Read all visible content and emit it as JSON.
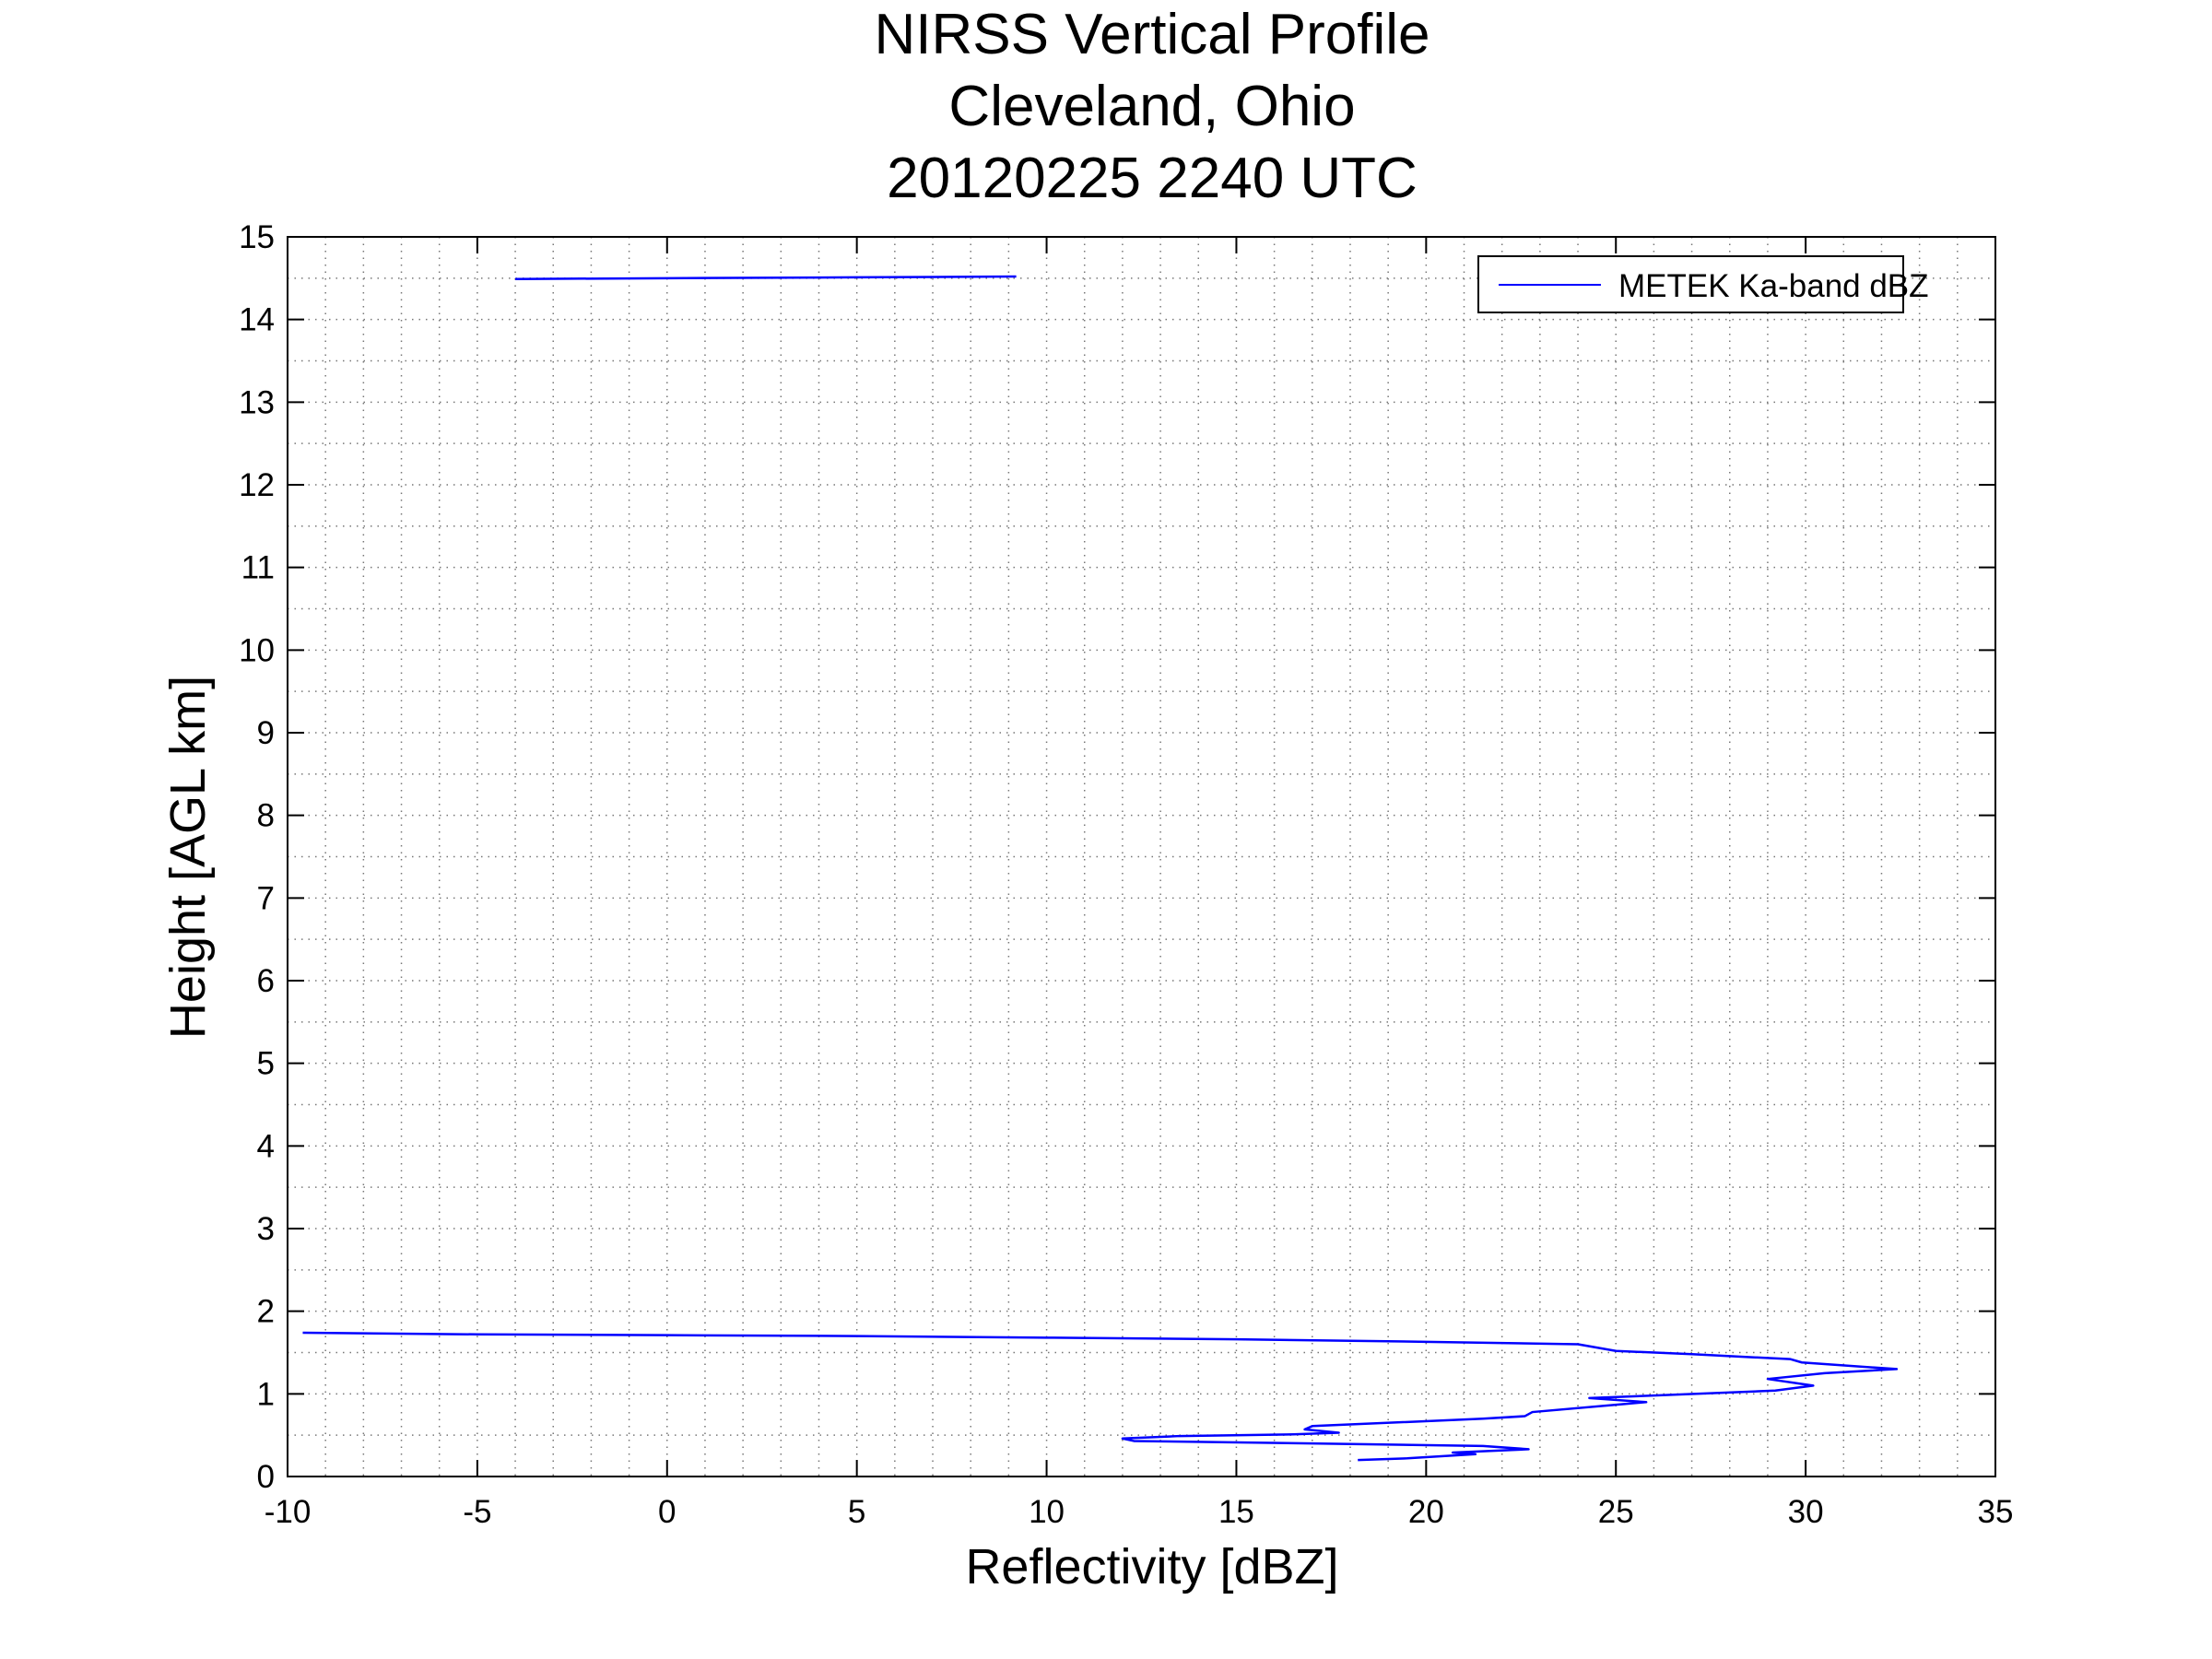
{
  "chart_data": {
    "type": "line",
    "title": [
      "NIRSS Vertical Profile",
      "Cleveland, Ohio",
      "20120225 2240 UTC"
    ],
    "xlabel": "Reflectivity [dBZ]",
    "ylabel": "Height [AGL km]",
    "xlim": [
      -10,
      35
    ],
    "ylim": [
      0,
      15
    ],
    "xticks": [
      -10,
      -5,
      0,
      5,
      10,
      15,
      20,
      25,
      30,
      35
    ],
    "yticks": [
      0,
      1,
      2,
      3,
      4,
      5,
      6,
      7,
      8,
      9,
      10,
      11,
      12,
      13,
      14,
      15
    ],
    "minor_grid": {
      "x_step": 1,
      "y_step": 0.5
    },
    "grid": true,
    "legend": {
      "position": "top-right",
      "entries": [
        "METEK Ka-band dBZ"
      ]
    },
    "series": [
      {
        "name": "METEK Ka-band dBZ",
        "color": "#0000ff",
        "segments": [
          [
            [
              18.2,
              0.2
            ],
            [
              19.5,
              0.22
            ],
            [
              21.3,
              0.27
            ],
            [
              20.7,
              0.29
            ],
            [
              22.7,
              0.33
            ],
            [
              21.5,
              0.37
            ],
            [
              17.0,
              0.4
            ],
            [
              12.3,
              0.43
            ],
            [
              12.0,
              0.46
            ],
            [
              13.5,
              0.49
            ],
            [
              16.5,
              0.51
            ],
            [
              17.7,
              0.53
            ],
            [
              16.8,
              0.57
            ],
            [
              17.0,
              0.61
            ],
            [
              21.5,
              0.7
            ],
            [
              22.6,
              0.73
            ],
            [
              22.8,
              0.78
            ],
            [
              25.8,
              0.9
            ],
            [
              24.3,
              0.95
            ],
            [
              26.0,
              0.98
            ],
            [
              29.2,
              1.04
            ],
            [
              30.2,
              1.1
            ],
            [
              29.0,
              1.18
            ],
            [
              30.5,
              1.25
            ],
            [
              32.4,
              1.3
            ],
            [
              29.9,
              1.38
            ],
            [
              29.6,
              1.42
            ],
            [
              27.0,
              1.48
            ],
            [
              25.0,
              1.52
            ],
            [
              24.0,
              1.6
            ],
            [
              20.0,
              1.63
            ],
            [
              15.0,
              1.66
            ],
            [
              10.0,
              1.68
            ],
            [
              5.0,
              1.7
            ],
            [
              0.0,
              1.71
            ],
            [
              -5.0,
              1.72
            ],
            [
              -9.6,
              1.74
            ]
          ],
          [
            [
              -4.0,
              14.49
            ],
            [
              0.0,
              14.5
            ],
            [
              5.0,
              14.51
            ],
            [
              9.2,
              14.52
            ]
          ]
        ]
      }
    ]
  }
}
